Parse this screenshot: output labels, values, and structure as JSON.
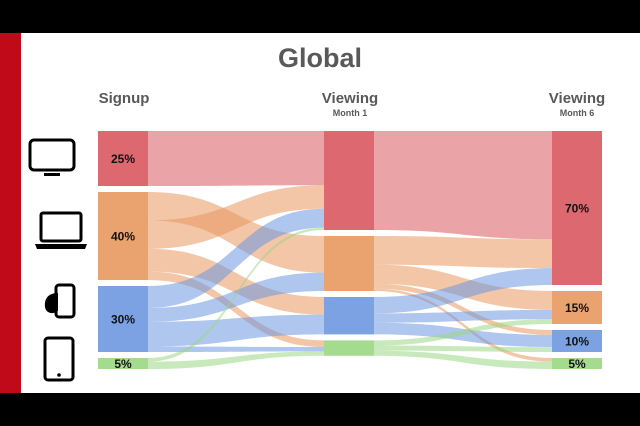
{
  "slide": {
    "title": "Global",
    "columns": [
      {
        "label": "Signup",
        "sub": ""
      },
      {
        "label": "Viewing",
        "sub": "Month 1"
      },
      {
        "label": "Viewing",
        "sub": "Month 6"
      }
    ]
  },
  "devices": [
    {
      "icon": "tv-icon",
      "color": "#d9585f"
    },
    {
      "icon": "laptop-icon",
      "color": "#e8985f"
    },
    {
      "icon": "smartphone-icon",
      "color": "#6e98e0"
    },
    {
      "icon": "tablet-icon",
      "color": "#9bd783"
    }
  ],
  "chart_data": {
    "type": "sankey",
    "title": "Global",
    "stages": [
      "Signup",
      "Viewing Month 1",
      "Viewing Month 6"
    ],
    "nodes": [
      {
        "stage": 0,
        "device": "TV",
        "share": 25,
        "label": "25%"
      },
      {
        "stage": 0,
        "device": "Laptop",
        "share": 40,
        "label": "40%"
      },
      {
        "stage": 0,
        "device": "Smartphone",
        "share": 30,
        "label": "30%"
      },
      {
        "stage": 0,
        "device": "Tablet",
        "share": 5,
        "label": "5%"
      },
      {
        "stage": 1,
        "device": "TV",
        "share": 45,
        "label": ""
      },
      {
        "stage": 1,
        "device": "Laptop",
        "share": 25,
        "label": ""
      },
      {
        "stage": 1,
        "device": "Smartphone",
        "share": 17,
        "label": ""
      },
      {
        "stage": 1,
        "device": "Tablet",
        "share": 7,
        "label": ""
      },
      {
        "stage": 2,
        "device": "TV",
        "share": 70,
        "label": "70%"
      },
      {
        "stage": 2,
        "device": "Laptop",
        "share": 15,
        "label": "15%"
      },
      {
        "stage": 2,
        "device": "Smartphone",
        "share": 10,
        "label": "10%"
      },
      {
        "stage": 2,
        "device": "Tablet",
        "share": 5,
        "label": "5%"
      }
    ],
    "flows": [
      {
        "stage": 0,
        "from": "TV",
        "to": "TV",
        "value": 23
      },
      {
        "stage": 0,
        "from": "Laptop",
        "to": "Laptop",
        "value": 10
      },
      {
        "stage": 0,
        "from": "Laptop",
        "to": "TV",
        "value": 10
      },
      {
        "stage": 0,
        "from": "Laptop",
        "to": "Smartphone",
        "value": 8
      },
      {
        "stage": 0,
        "from": "Laptop",
        "to": "Tablet",
        "value": 3
      },
      {
        "stage": 0,
        "from": "Smartphone",
        "to": "TV",
        "value": 8
      },
      {
        "stage": 0,
        "from": "Smartphone",
        "to": "Laptop",
        "value": 5
      },
      {
        "stage": 0,
        "from": "Smartphone",
        "to": "Smartphone",
        "value": 9
      },
      {
        "stage": 0,
        "from": "Smartphone",
        "to": "Tablet",
        "value": 2
      },
      {
        "stage": 0,
        "from": "Tablet",
        "to": "TV",
        "value": 1
      },
      {
        "stage": 0,
        "from": "Tablet",
        "to": "Tablet",
        "value": 2
      },
      {
        "stage": 1,
        "from": "TV",
        "to": "TV",
        "value": 45
      },
      {
        "stage": 1,
        "from": "Laptop",
        "to": "TV",
        "value": 12
      },
      {
        "stage": 1,
        "from": "Laptop",
        "to": "Laptop",
        "value": 8
      },
      {
        "stage": 1,
        "from": "Laptop",
        "to": "Smartphone",
        "value": 2
      },
      {
        "stage": 1,
        "from": "Laptop",
        "to": "Tablet",
        "value": 1
      },
      {
        "stage": 1,
        "from": "Smartphone",
        "to": "TV",
        "value": 7
      },
      {
        "stage": 1,
        "from": "Smartphone",
        "to": "Laptop",
        "value": 4
      },
      {
        "stage": 1,
        "from": "Smartphone",
        "to": "Smartphone",
        "value": 5
      },
      {
        "stage": 1,
        "from": "Tablet",
        "to": "Laptop",
        "value": 2
      },
      {
        "stage": 1,
        "from": "Tablet",
        "to": "Smartphone",
        "value": 2
      },
      {
        "stage": 1,
        "from": "Tablet",
        "to": "Tablet",
        "value": 2
      }
    ]
  }
}
